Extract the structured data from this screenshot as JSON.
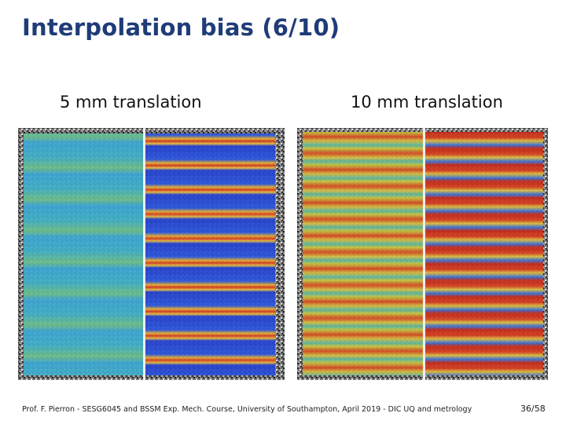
{
  "header": {
    "title": "Interpolation bias (6/10)"
  },
  "figures": [
    {
      "caption": "5 mm translation"
    },
    {
      "caption": "10 mm translation"
    }
  ],
  "footer": {
    "text": "Prof. F. Pierron - SESG6045 and BSSM Exp. Mech. Course, University of Southampton, April 2019 - DIC UQ and metrology",
    "page": "36/58"
  }
}
